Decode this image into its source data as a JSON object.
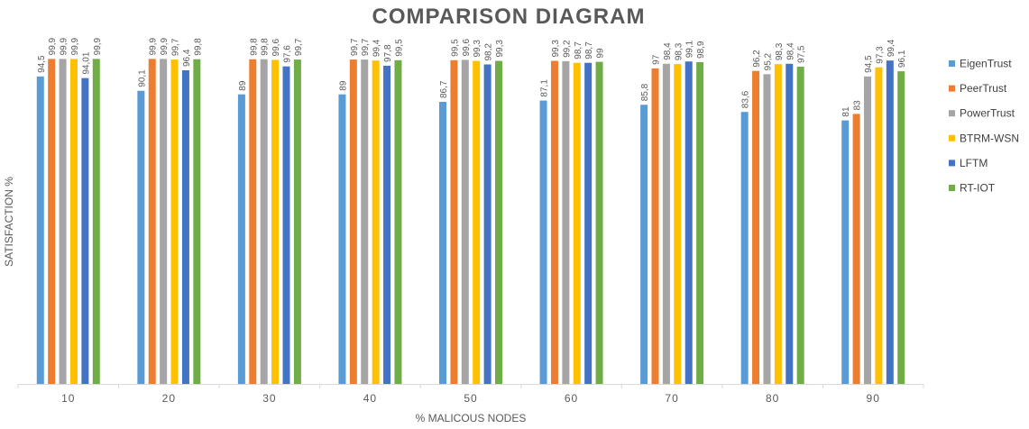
{
  "chart_data": {
    "type": "bar",
    "title": "COMPARISON DIAGRAM",
    "xlabel": "% MALICOUS NODES",
    "ylabel": "SATISFACTION %",
    "categories": [
      "10",
      "20",
      "30",
      "40",
      "50",
      "60",
      "70",
      "80",
      "90"
    ],
    "ylim": [
      0,
      100
    ],
    "grid": false,
    "legend_position": "right",
    "series": [
      {
        "name": "EigenTrust",
        "color": "#5B9BD5",
        "values": [
          94.5,
          90.1,
          89,
          89,
          86.7,
          87.1,
          85.8,
          83.6,
          81
        ],
        "labels": [
          "94,5",
          "90,1",
          "89",
          "89",
          "86,7",
          "87,1",
          "85,8",
          "83,6",
          "81"
        ]
      },
      {
        "name": "PeerTrust",
        "color": "#ED7D31",
        "values": [
          99.9,
          99.9,
          99.8,
          99.7,
          99.5,
          99.3,
          97,
          96.2,
          83
        ],
        "labels": [
          "99,9",
          "99,9",
          "99,8",
          "99,7",
          "99,5",
          "99,3",
          "97",
          "96,2",
          "83"
        ]
      },
      {
        "name": "PowerTrust",
        "color": "#A5A5A5",
        "values": [
          99.9,
          99.9,
          99.8,
          99.7,
          99.6,
          99.2,
          98.4,
          95.2,
          94.5
        ],
        "labels": [
          "99,9",
          "99,9",
          "99,8",
          "99,7",
          "99,6",
          "99,2",
          "98,4",
          "95,2",
          "94,5"
        ]
      },
      {
        "name": "BTRM-WSN",
        "color": "#FFC000",
        "values": [
          99.9,
          99.7,
          99.6,
          99.4,
          99.3,
          98.7,
          98.3,
          98.3,
          97.3
        ],
        "labels": [
          "99,9",
          "99,7",
          "99,6",
          "99,4",
          "99,3",
          "98,7",
          "98,3",
          "98,3",
          "97,3"
        ]
      },
      {
        "name": "LFTM",
        "color": "#4472C4",
        "values": [
          94.01,
          96.4,
          97.6,
          97.8,
          98.2,
          98.7,
          99.1,
          98.4,
          99.4
        ],
        "labels": [
          "94,01",
          "96,4",
          "97,6",
          "97,8",
          "98,2",
          "98,7",
          "99,1",
          "98,4",
          "99,4"
        ]
      },
      {
        "name": "RT-IOT",
        "color": "#70AD47",
        "values": [
          99.9,
          99.8,
          99.7,
          99.5,
          99.3,
          99,
          98.9,
          97.5,
          96.1
        ],
        "labels": [
          "99,9",
          "99,8",
          "99,7",
          "99,5",
          "99,3",
          "99",
          "98,9",
          "97,5",
          "96,1"
        ]
      }
    ]
  }
}
